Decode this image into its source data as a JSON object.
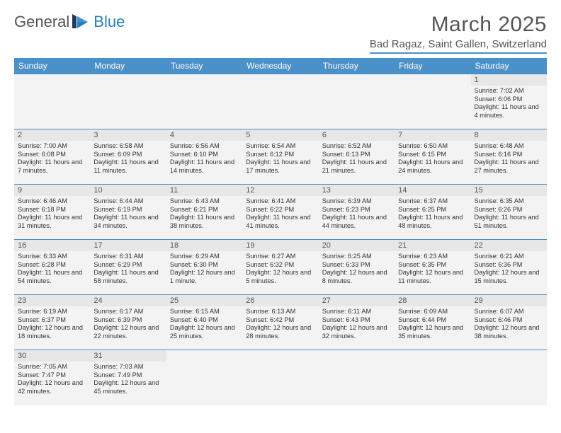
{
  "brand": {
    "text1": "General",
    "text2": "Blue"
  },
  "title": {
    "month": "March 2025",
    "location": "Bad Ragaz, Saint Gallen, Switzerland"
  },
  "day_headers": [
    "Sunday",
    "Monday",
    "Tuesday",
    "Wednesday",
    "Thursday",
    "Friday",
    "Saturday"
  ],
  "colors": {
    "brand_blue": "#4a90c9",
    "dark_blue": "#2a7fba",
    "header_text": "#ffffff",
    "body_text": "#555555",
    "cell_bg": "#f3f3f3",
    "daynum_bg": "#e7e7e7"
  },
  "weeks": [
    [
      null,
      null,
      null,
      null,
      null,
      null,
      {
        "n": "1",
        "sr": "Sunrise: 7:02 AM",
        "ss": "Sunset: 6:06 PM",
        "dl": "Daylight: 11 hours and 4 minutes."
      }
    ],
    [
      {
        "n": "2",
        "sr": "Sunrise: 7:00 AM",
        "ss": "Sunset: 6:08 PM",
        "dl": "Daylight: 11 hours and 7 minutes."
      },
      {
        "n": "3",
        "sr": "Sunrise: 6:58 AM",
        "ss": "Sunset: 6:09 PM",
        "dl": "Daylight: 11 hours and 11 minutes."
      },
      {
        "n": "4",
        "sr": "Sunrise: 6:56 AM",
        "ss": "Sunset: 6:10 PM",
        "dl": "Daylight: 11 hours and 14 minutes."
      },
      {
        "n": "5",
        "sr": "Sunrise: 6:54 AM",
        "ss": "Sunset: 6:12 PM",
        "dl": "Daylight: 11 hours and 17 minutes."
      },
      {
        "n": "6",
        "sr": "Sunrise: 6:52 AM",
        "ss": "Sunset: 6:13 PM",
        "dl": "Daylight: 11 hours and 21 minutes."
      },
      {
        "n": "7",
        "sr": "Sunrise: 6:50 AM",
        "ss": "Sunset: 6:15 PM",
        "dl": "Daylight: 11 hours and 24 minutes."
      },
      {
        "n": "8",
        "sr": "Sunrise: 6:48 AM",
        "ss": "Sunset: 6:16 PM",
        "dl": "Daylight: 11 hours and 27 minutes."
      }
    ],
    [
      {
        "n": "9",
        "sr": "Sunrise: 6:46 AM",
        "ss": "Sunset: 6:18 PM",
        "dl": "Daylight: 11 hours and 31 minutes."
      },
      {
        "n": "10",
        "sr": "Sunrise: 6:44 AM",
        "ss": "Sunset: 6:19 PM",
        "dl": "Daylight: 11 hours and 34 minutes."
      },
      {
        "n": "11",
        "sr": "Sunrise: 6:43 AM",
        "ss": "Sunset: 6:21 PM",
        "dl": "Daylight: 11 hours and 38 minutes."
      },
      {
        "n": "12",
        "sr": "Sunrise: 6:41 AM",
        "ss": "Sunset: 6:22 PM",
        "dl": "Daylight: 11 hours and 41 minutes."
      },
      {
        "n": "13",
        "sr": "Sunrise: 6:39 AM",
        "ss": "Sunset: 6:23 PM",
        "dl": "Daylight: 11 hours and 44 minutes."
      },
      {
        "n": "14",
        "sr": "Sunrise: 6:37 AM",
        "ss": "Sunset: 6:25 PM",
        "dl": "Daylight: 11 hours and 48 minutes."
      },
      {
        "n": "15",
        "sr": "Sunrise: 6:35 AM",
        "ss": "Sunset: 6:26 PM",
        "dl": "Daylight: 11 hours and 51 minutes."
      }
    ],
    [
      {
        "n": "16",
        "sr": "Sunrise: 6:33 AM",
        "ss": "Sunset: 6:28 PM",
        "dl": "Daylight: 11 hours and 54 minutes."
      },
      {
        "n": "17",
        "sr": "Sunrise: 6:31 AM",
        "ss": "Sunset: 6:29 PM",
        "dl": "Daylight: 11 hours and 58 minutes."
      },
      {
        "n": "18",
        "sr": "Sunrise: 6:29 AM",
        "ss": "Sunset: 6:30 PM",
        "dl": "Daylight: 12 hours and 1 minute."
      },
      {
        "n": "19",
        "sr": "Sunrise: 6:27 AM",
        "ss": "Sunset: 6:32 PM",
        "dl": "Daylight: 12 hours and 5 minutes."
      },
      {
        "n": "20",
        "sr": "Sunrise: 6:25 AM",
        "ss": "Sunset: 6:33 PM",
        "dl": "Daylight: 12 hours and 8 minutes."
      },
      {
        "n": "21",
        "sr": "Sunrise: 6:23 AM",
        "ss": "Sunset: 6:35 PM",
        "dl": "Daylight: 12 hours and 11 minutes."
      },
      {
        "n": "22",
        "sr": "Sunrise: 6:21 AM",
        "ss": "Sunset: 6:36 PM",
        "dl": "Daylight: 12 hours and 15 minutes."
      }
    ],
    [
      {
        "n": "23",
        "sr": "Sunrise: 6:19 AM",
        "ss": "Sunset: 6:37 PM",
        "dl": "Daylight: 12 hours and 18 minutes."
      },
      {
        "n": "24",
        "sr": "Sunrise: 6:17 AM",
        "ss": "Sunset: 6:39 PM",
        "dl": "Daylight: 12 hours and 22 minutes."
      },
      {
        "n": "25",
        "sr": "Sunrise: 6:15 AM",
        "ss": "Sunset: 6:40 PM",
        "dl": "Daylight: 12 hours and 25 minutes."
      },
      {
        "n": "26",
        "sr": "Sunrise: 6:13 AM",
        "ss": "Sunset: 6:42 PM",
        "dl": "Daylight: 12 hours and 28 minutes."
      },
      {
        "n": "27",
        "sr": "Sunrise: 6:11 AM",
        "ss": "Sunset: 6:43 PM",
        "dl": "Daylight: 12 hours and 32 minutes."
      },
      {
        "n": "28",
        "sr": "Sunrise: 6:09 AM",
        "ss": "Sunset: 6:44 PM",
        "dl": "Daylight: 12 hours and 35 minutes."
      },
      {
        "n": "29",
        "sr": "Sunrise: 6:07 AM",
        "ss": "Sunset: 6:46 PM",
        "dl": "Daylight: 12 hours and 38 minutes."
      }
    ],
    [
      {
        "n": "30",
        "sr": "Sunrise: 7:05 AM",
        "ss": "Sunset: 7:47 PM",
        "dl": "Daylight: 12 hours and 42 minutes."
      },
      {
        "n": "31",
        "sr": "Sunrise: 7:03 AM",
        "ss": "Sunset: 7:49 PM",
        "dl": "Daylight: 12 hours and 45 minutes."
      },
      null,
      null,
      null,
      null,
      null
    ]
  ]
}
